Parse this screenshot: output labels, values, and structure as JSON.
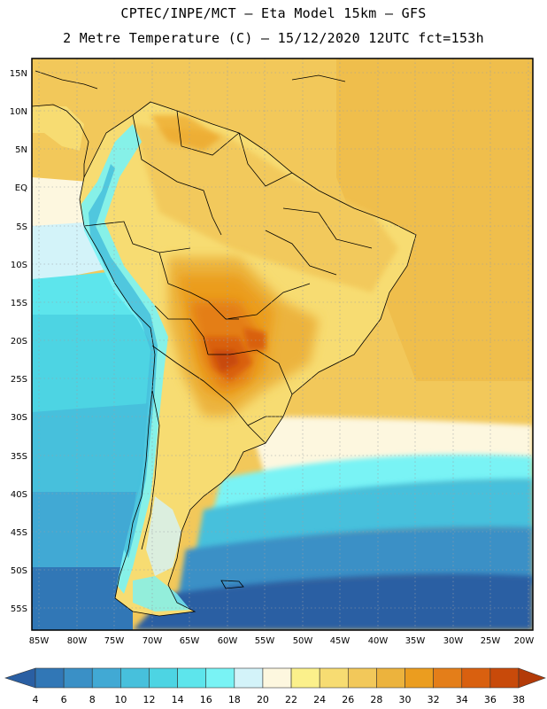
{
  "header": {
    "line1": "CPTEC/INPE/MCT –  Eta Model 15km – GFS",
    "line2": "2 Metre Temperature (C) – 15/12/2020 12UTC fct=153h"
  },
  "map": {
    "lat_labels": [
      "15N",
      "10N",
      "5N",
      "EQ",
      "5S",
      "10S",
      "15S",
      "20S",
      "25S",
      "30S",
      "35S",
      "40S",
      "45S",
      "50S",
      "55S"
    ],
    "lon_labels": [
      "85W",
      "80W",
      "75W",
      "70W",
      "65W",
      "60W",
      "55W",
      "50W",
      "45W",
      "40W",
      "35W",
      "30W",
      "25W",
      "20W"
    ]
  },
  "colorbar": {
    "values": [
      "4",
      "6",
      "8",
      "10",
      "12",
      "14",
      "16",
      "18",
      "20",
      "22",
      "24",
      "26",
      "28",
      "30",
      "32",
      "34",
      "36",
      "38"
    ],
    "colors": [
      "#2a5fa3",
      "#3177b6",
      "#3a90c6",
      "#41a9d4",
      "#47c0dc",
      "#4dd4e3",
      "#5de5ec",
      "#79f3f5",
      "#d3f3f9",
      "#fdf7df",
      "#fbf08b",
      "#f7dc72",
      "#f2c85a",
      "#ecb33d",
      "#eb9d1f",
      "#e47e19",
      "#d9600f",
      "#c84a0a",
      "#b33a08"
    ]
  }
}
